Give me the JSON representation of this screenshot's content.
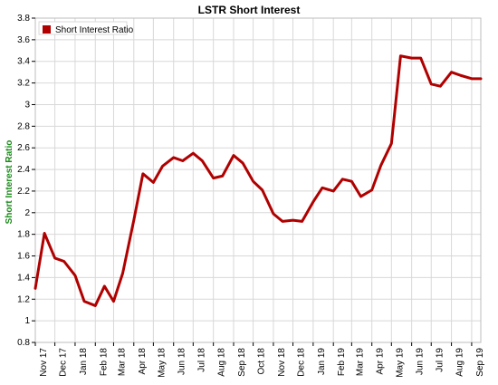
{
  "chart_data": {
    "type": "line",
    "title": "LSTR Short Interest",
    "xlabel": "",
    "ylabel": "Short Interest Ratio",
    "ylim": [
      0.8,
      3.8
    ],
    "y_ticks": [
      "0.8",
      "1",
      "1.2",
      "1.4",
      "1.6",
      "1.8",
      "2",
      "2.2",
      "2.4",
      "2.6",
      "2.8",
      "3",
      "3.2",
      "3.4",
      "3.6",
      "3.8"
    ],
    "grid": true,
    "legend_position": "top-left",
    "colors": {
      "series": "#b00000",
      "ylabel": "#1a8a1a",
      "grid": "#d8d8d8",
      "axis": "#000000"
    },
    "x_tick_labels": [
      "Nov 17",
      "Dec 17",
      "Jan 18",
      "Feb 18",
      "Mar 18",
      "Apr 18",
      "May 18",
      "Jun 18",
      "Jul 18",
      "Aug 18",
      "Sep 18",
      "Oct 18",
      "Nov 18",
      "Dec 18",
      "Jan 19",
      "Feb 19",
      "Mar 19",
      "Apr 19",
      "May 19",
      "Jun 19",
      "Jul 19",
      "Aug 19",
      "Sep 19"
    ],
    "series": [
      {
        "name": "Short Interest Ratio",
        "x": [
          "2017-11-01",
          "2017-11-15",
          "2017-12-01",
          "2017-12-15",
          "2018-01-01",
          "2018-01-15",
          "2018-02-01",
          "2018-02-15",
          "2018-03-01",
          "2018-03-15",
          "2018-04-01",
          "2018-04-15",
          "2018-05-01",
          "2018-05-15",
          "2018-06-01",
          "2018-06-15",
          "2018-07-01",
          "2018-07-15",
          "2018-08-01",
          "2018-08-15",
          "2018-09-01",
          "2018-09-15",
          "2018-10-01",
          "2018-10-15",
          "2018-11-01",
          "2018-11-15",
          "2018-12-01",
          "2018-12-15",
          "2019-01-01",
          "2019-01-15",
          "2019-02-01",
          "2019-02-15",
          "2019-03-01",
          "2019-03-15",
          "2019-04-01",
          "2019-04-15",
          "2019-05-01",
          "2019-05-15",
          "2019-06-01",
          "2019-06-15",
          "2019-07-01",
          "2019-07-15",
          "2019-08-01",
          "2019-08-15",
          "2019-09-01",
          "2019-09-15"
        ],
        "y": [
          1.3,
          1.81,
          1.58,
          1.55,
          1.42,
          1.18,
          1.14,
          1.32,
          1.18,
          1.44,
          1.93,
          2.36,
          2.28,
          2.43,
          2.51,
          2.48,
          2.55,
          2.48,
          2.32,
          2.34,
          2.53,
          2.46,
          2.29,
          2.21,
          1.99,
          1.92,
          1.93,
          1.92,
          2.1,
          2.23,
          2.2,
          2.31,
          2.29,
          2.15,
          2.21,
          2.44,
          2.64,
          3.45,
          3.43,
          3.43,
          3.19,
          3.17,
          3.3,
          3.27,
          3.24,
          3.24
        ]
      }
    ]
  }
}
